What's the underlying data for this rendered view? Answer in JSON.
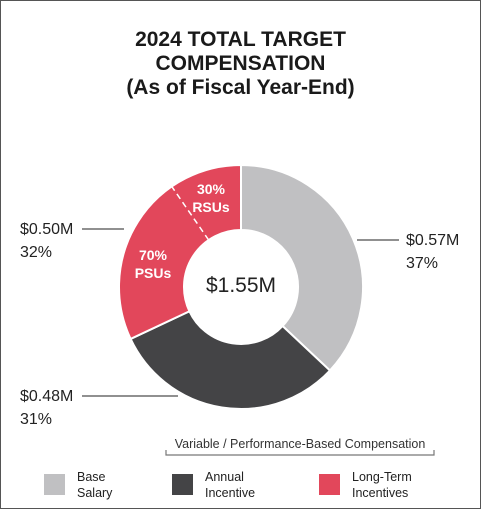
{
  "title_lines": [
    "2024 TOTAL TARGET",
    "COMPENSATION",
    "(As of Fiscal Year-End)"
  ],
  "chart_data": {
    "type": "pie",
    "subtype": "donut",
    "center_label": "$1.55M",
    "slices": [
      {
        "name": "Base Salary",
        "value": 0.57,
        "value_label": "$0.57M",
        "percent_label": "37%",
        "percent": 37,
        "color": "#c0c0c2"
      },
      {
        "name": "Annual Incentive",
        "value": 0.48,
        "value_label": "$0.48M",
        "percent_label": "31%",
        "percent": 31,
        "color": "#444446"
      },
      {
        "name": "Long-Term Incentives",
        "value": 0.5,
        "value_label": "$0.50M",
        "percent_label": "32%",
        "percent": 32,
        "color": "#e2475b",
        "subsplit": [
          {
            "label_pct": "70%",
            "label_name": "PSUs",
            "percent": 70
          },
          {
            "label_pct": "30%",
            "label_name": "RSUs",
            "percent": 30
          }
        ]
      }
    ]
  },
  "bracket_label": "Variable / Performance-Based Compensation",
  "legend": [
    {
      "lines": [
        "Base",
        "Salary"
      ],
      "color": "#c0c0c2"
    },
    {
      "lines": [
        "Annual",
        "Incentive"
      ],
      "color": "#444446"
    },
    {
      "lines": [
        "Long-Term",
        "Incentives"
      ],
      "color": "#e2475b"
    }
  ]
}
